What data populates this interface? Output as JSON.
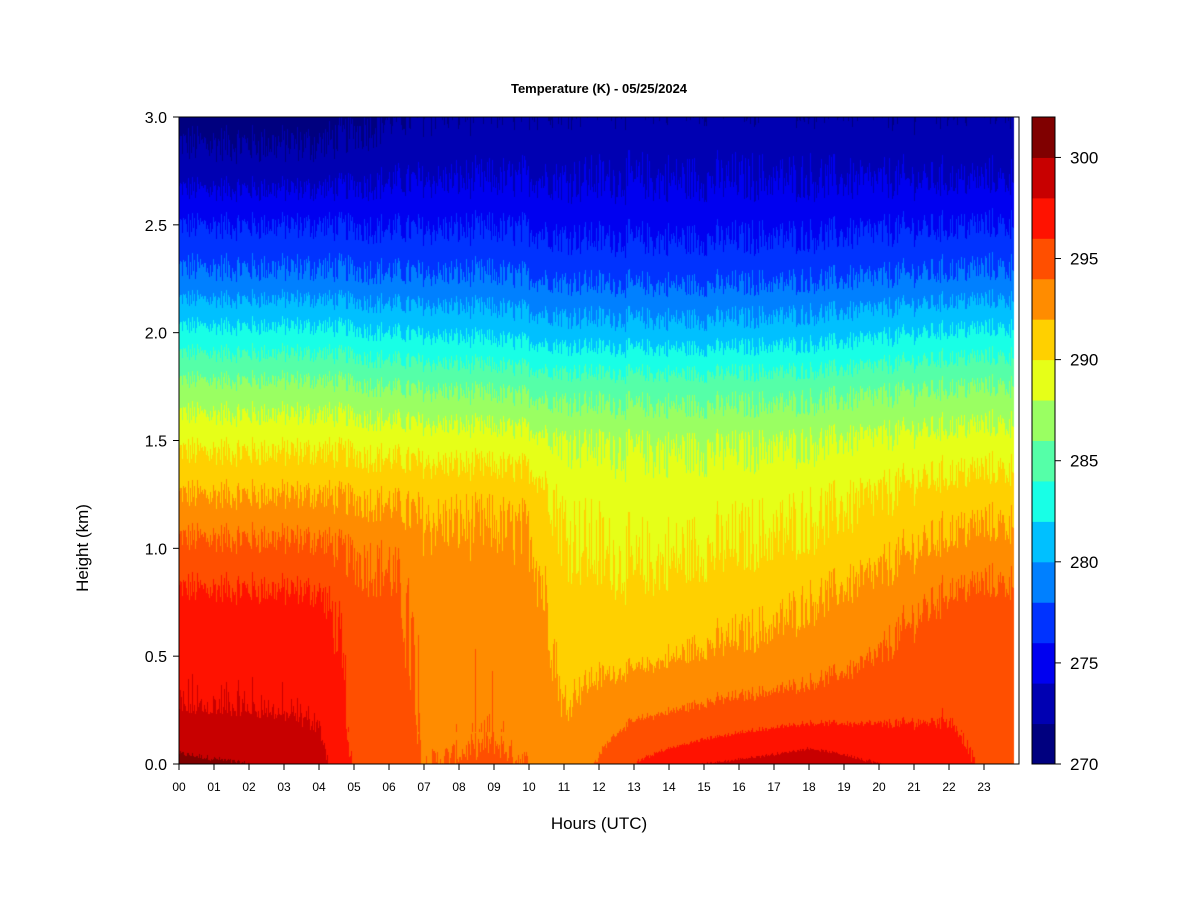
{
  "chart_data": {
    "type": "heatmap",
    "title": "Temperature (K) - 05/25/2024",
    "xlabel": "Hours (UTC)",
    "ylabel": "Height (km)",
    "xlim": [
      0,
      24
    ],
    "ylim": [
      0,
      3
    ],
    "x_ticks": [
      0,
      1,
      2,
      3,
      4,
      5,
      6,
      7,
      8,
      9,
      10,
      11,
      12,
      13,
      14,
      15,
      16,
      17,
      18,
      19,
      20,
      21,
      22,
      23
    ],
    "x_tick_labels": [
      "00",
      "01",
      "02",
      "03",
      "04",
      "05",
      "06",
      "07",
      "08",
      "09",
      "10",
      "11",
      "12",
      "13",
      "14",
      "15",
      "16",
      "17",
      "18",
      "19",
      "20",
      "21",
      "22",
      "23"
    ],
    "y_ticks": [
      0.0,
      0.5,
      1.0,
      1.5,
      2.0,
      2.5,
      3.0
    ],
    "y_tick_labels": [
      "0.0",
      "0.5",
      "1.0",
      "1.5",
      "2.0",
      "2.5",
      "3.0"
    ],
    "colorbar": {
      "min": 270,
      "max": 302,
      "step": 2,
      "ticks": [
        270,
        275,
        280,
        285,
        290,
        295,
        300
      ],
      "tick_labels": [
        "270",
        "275",
        "280",
        "285",
        "290",
        "295",
        "300"
      ],
      "colors": [
        "#00007f",
        "#0000b2",
        "#0000f0",
        "#0033ff",
        "#0080ff",
        "#00c0ff",
        "#18ffe6",
        "#55ffa8",
        "#9aff62",
        "#e6ff18",
        "#ffd000",
        "#ff8c00",
        "#ff4f00",
        "#ff1200",
        "#c80000",
        "#800000"
      ]
    },
    "temperature_profiles": {
      "heights_km": [
        0.0,
        0.1,
        0.25,
        0.5,
        0.75,
        1.0,
        1.25,
        1.5,
        1.75,
        2.0,
        2.25,
        2.5,
        2.75,
        3.0
      ],
      "profiles": [
        {
          "hour": 0,
          "values": [
            300.5,
            299.5,
            298.0,
            297.5,
            296.5,
            294.5,
            292.0,
            289.5,
            286.5,
            282.5,
            278.5,
            276.0,
            273.0,
            271.0
          ]
        },
        {
          "hour": 2,
          "values": [
            300.0,
            299.0,
            298.0,
            297.5,
            296.5,
            294.5,
            292.0,
            289.5,
            286.5,
            282.5,
            278.5,
            276.0,
            273.0,
            271.0
          ]
        },
        {
          "hour": 4,
          "values": [
            298.8,
            298.3,
            297.8,
            297.4,
            296.4,
            294.4,
            292.0,
            289.5,
            286.5,
            282.5,
            278.5,
            276.0,
            273.0,
            271.0
          ]
        },
        {
          "hour": 5,
          "values": [
            295.8,
            295.6,
            295.4,
            295.2,
            294.8,
            293.8,
            291.8,
            289.4,
            286.3,
            282.3,
            278.4,
            275.9,
            273.3,
            271.5
          ]
        },
        {
          "hour": 6,
          "values": [
            295.6,
            295.4,
            295.2,
            295.0,
            294.6,
            293.6,
            291.7,
            289.2,
            286.0,
            282.0,
            278.3,
            275.8,
            273.5,
            272.0
          ]
        },
        {
          "hour": 7,
          "values": [
            294.0,
            293.8,
            293.6,
            293.5,
            293.2,
            292.6,
            291.4,
            289.0,
            285.8,
            281.8,
            278.2,
            275.8,
            273.6,
            272.2
          ]
        },
        {
          "hour": 9,
          "values": [
            294.2,
            294.0,
            293.8,
            293.6,
            293.2,
            292.5,
            291.3,
            288.8,
            285.6,
            281.5,
            278.2,
            275.8,
            273.6,
            272.3
          ]
        },
        {
          "hour": 10,
          "values": [
            294.0,
            293.8,
            293.6,
            293.4,
            293.0,
            292.4,
            291.2,
            288.7,
            285.4,
            281.3,
            278.0,
            275.8,
            273.7,
            272.4
          ]
        },
        {
          "hour": 11,
          "values": [
            292.5,
            292.3,
            292.0,
            291.5,
            291.0,
            290.2,
            289.5,
            288.1,
            285.2,
            281.0,
            277.8,
            275.5,
            273.7,
            272.5
          ]
        },
        {
          "hour": 13,
          "values": [
            296.0,
            295.0,
            293.5,
            291.5,
            290.5,
            289.6,
            289.0,
            287.8,
            285.0,
            280.8,
            277.6,
            275.4,
            273.7,
            272.5
          ]
        },
        {
          "hour": 15,
          "values": [
            298.0,
            296.2,
            294.3,
            292.2,
            291.0,
            289.9,
            289.1,
            287.8,
            285.0,
            280.8,
            277.6,
            275.4,
            273.7,
            272.5
          ]
        },
        {
          "hour": 17,
          "values": [
            298.8,
            297.0,
            294.8,
            292.6,
            291.5,
            290.2,
            289.3,
            287.9,
            285.1,
            281.0,
            277.7,
            275.5,
            273.7,
            272.5
          ]
        },
        {
          "hour": 18,
          "values": [
            299.3,
            297.5,
            295.0,
            293.0,
            292.0,
            290.5,
            289.5,
            288.0,
            285.2,
            281.1,
            277.8,
            275.5,
            273.7,
            272.5
          ]
        },
        {
          "hour": 20,
          "values": [
            298.0,
            296.8,
            295.4,
            294.0,
            292.8,
            291.3,
            290.0,
            288.3,
            285.5,
            281.6,
            278.0,
            275.7,
            273.6,
            272.4
          ]
        },
        {
          "hour": 21,
          "values": [
            297.6,
            296.6,
            295.6,
            294.8,
            293.6,
            291.9,
            290.5,
            288.5,
            285.8,
            281.9,
            278.2,
            275.8,
            273.6,
            272.4
          ]
        },
        {
          "hour": 22,
          "values": [
            297.3,
            296.5,
            295.8,
            295.2,
            294.4,
            292.5,
            290.8,
            288.7,
            286.0,
            282.2,
            278.4,
            275.9,
            273.6,
            272.4
          ]
        },
        {
          "hour": 23,
          "values": [
            295.5,
            295.4,
            295.3,
            295.2,
            294.6,
            292.8,
            291.0,
            288.8,
            286.1,
            282.3,
            278.5,
            276.0,
            273.6,
            272.4
          ]
        },
        {
          "hour": 24,
          "values": [
            295.5,
            295.4,
            295.3,
            295.2,
            294.6,
            292.8,
            291.0,
            288.8,
            286.1,
            282.3,
            278.5,
            276.0,
            273.6,
            272.4
          ]
        }
      ]
    },
    "data_end_hour": 23.85,
    "legend": "right (colorbar)",
    "grid": false
  }
}
